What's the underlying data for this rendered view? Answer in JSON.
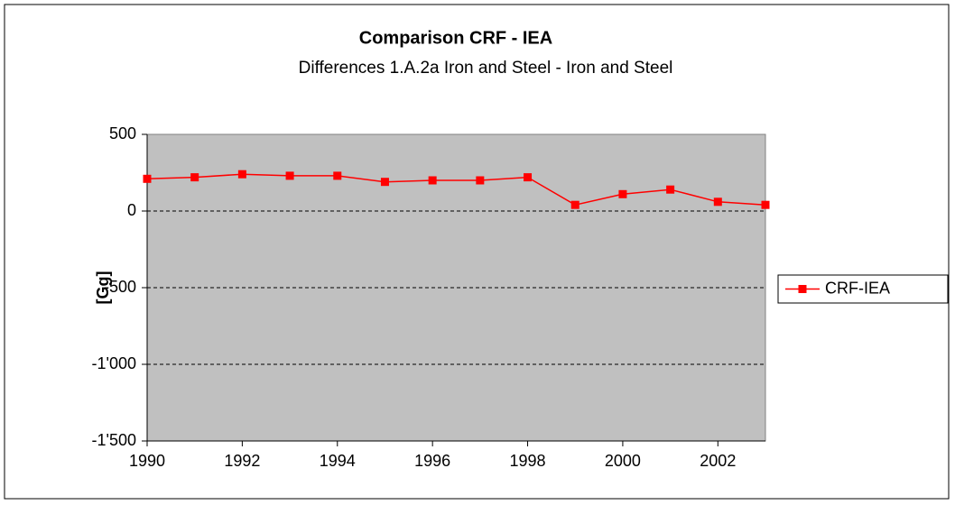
{
  "chart_data": {
    "type": "line",
    "title": "Comparison CRF - IEA",
    "subtitle": "Differences 1.A.2a Iron and Steel - Iron and Steel",
    "y_label": "[Gg]",
    "x": [
      1990,
      1991,
      1992,
      1993,
      1994,
      1995,
      1996,
      1997,
      1998,
      1999,
      2000,
      2001,
      2002,
      2003
    ],
    "series": [
      {
        "name": "CRF-IEA",
        "color": "#ff0000",
        "values": [
          210,
          220,
          240,
          230,
          230,
          190,
          200,
          200,
          220,
          40,
          110,
          140,
          60,
          40
        ]
      }
    ],
    "xlim": [
      1990,
      2003
    ],
    "xticks": [
      1990,
      1992,
      1994,
      1996,
      1998,
      2000,
      2002
    ],
    "ylim": [
      -1500,
      500
    ],
    "yticks": [
      {
        "value": -1500,
        "label": "-1'500"
      },
      {
        "value": -1000,
        "label": "-1'000"
      },
      -500,
      0,
      500
    ],
    "grid": true,
    "legend": "right"
  }
}
